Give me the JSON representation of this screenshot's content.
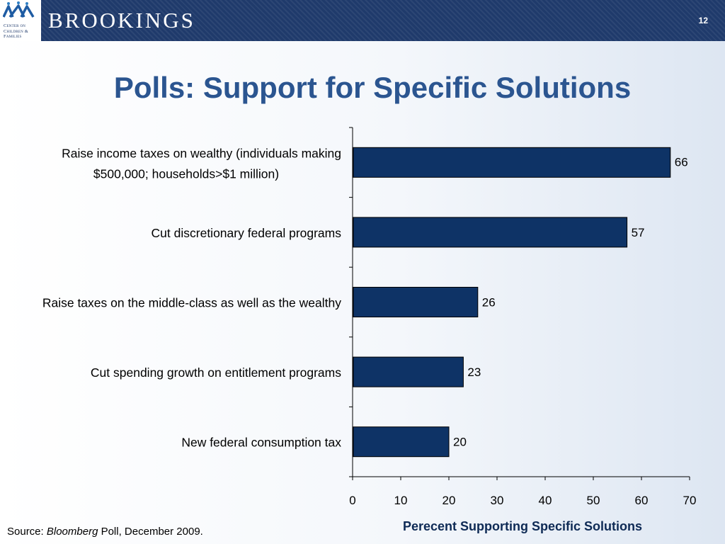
{
  "header": {
    "logo_lines": [
      "Center on",
      "Children &",
      "Families"
    ],
    "brand": "BROOKINGS",
    "page_number": "12"
  },
  "title": "Polls: Support for Specific Solutions",
  "source": {
    "prefix": "Source: ",
    "italic": "Bloomberg",
    "suffix": " Poll, December 2009."
  },
  "colors": {
    "bar": "#0e3366",
    "header": "#1f3a6b",
    "title": "#2b5590"
  },
  "chart_data": {
    "type": "bar",
    "orientation": "horizontal",
    "categories": [
      [
        "Raise income taxes on wealthy (individuals making",
        "$500,000; households>$1 million)"
      ],
      [
        "Cut discretionary federal programs"
      ],
      [
        "Raise taxes on the middle-class as well as the wealthy"
      ],
      [
        "Cut spending growth on entitlement programs"
      ],
      [
        "New federal consumption tax"
      ]
    ],
    "values": [
      66,
      57,
      26,
      23,
      20
    ],
    "xlabel": "Perecent Supporting Specific Solutions",
    "xlim": [
      0,
      70
    ],
    "xticks": [
      0,
      10,
      20,
      30,
      40,
      50,
      60,
      70
    ],
    "grid": false,
    "legend": "none"
  }
}
